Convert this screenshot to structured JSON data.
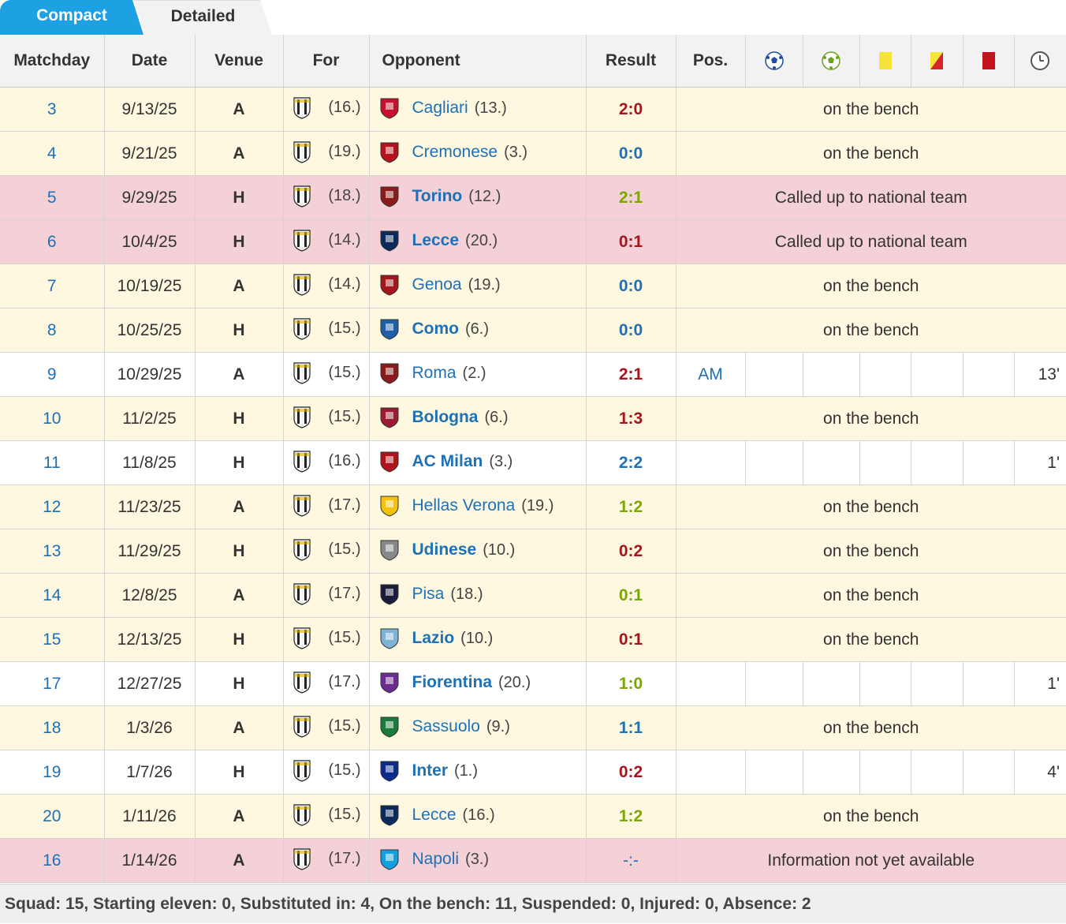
{
  "tabs": {
    "compact": "Compact",
    "detailed": "Detailed"
  },
  "headers": {
    "matchday": "Matchday",
    "date": "Date",
    "venue": "Venue",
    "for": "For",
    "opponent": "Opponent",
    "result": "Result",
    "pos": "Pos."
  },
  "header_icons": [
    "goals-icon",
    "assists-icon",
    "yellow-card-icon",
    "yellow-red-card-icon",
    "red-card-icon",
    "minutes-clock-icon"
  ],
  "colors": {
    "accent": "#1da1e2",
    "link": "#1f70b5",
    "win": "#a5151d",
    "loss": "#7aa800",
    "bench_row": "#fdf8df",
    "national_row": "#f3d1d6"
  },
  "rows": [
    {
      "md": "3",
      "date": "9/13/25",
      "venue": "A",
      "for_rank": "(16.)",
      "opp": "Cagliari",
      "opp_rank": "(13.)",
      "result": "2:0",
      "rclass": "win",
      "status": "bench",
      "note": "on the bench"
    },
    {
      "md": "4",
      "date": "9/21/25",
      "venue": "A",
      "for_rank": "(19.)",
      "opp": "Cremonese",
      "opp_rank": "(3.)",
      "result": "0:0",
      "rclass": "draw",
      "status": "bench",
      "note": "on the bench"
    },
    {
      "md": "5",
      "date": "9/29/25",
      "venue": "H",
      "for_rank": "(18.)",
      "opp": "Torino",
      "opp_rank": "(12.)",
      "result": "2:1",
      "rclass": "loss",
      "status": "nat",
      "note": "Called up to national team"
    },
    {
      "md": "6",
      "date": "10/4/25",
      "venue": "H",
      "for_rank": "(14.)",
      "opp": "Lecce",
      "opp_rank": "(20.)",
      "result": "0:1",
      "rclass": "win",
      "status": "nat",
      "note": "Called up to national team"
    },
    {
      "md": "7",
      "date": "10/19/25",
      "venue": "A",
      "for_rank": "(14.)",
      "opp": "Genoa",
      "opp_rank": "(19.)",
      "result": "0:0",
      "rclass": "draw",
      "status": "bench",
      "note": "on the bench"
    },
    {
      "md": "8",
      "date": "10/25/25",
      "venue": "H",
      "for_rank": "(15.)",
      "opp": "Como",
      "opp_rank": "(6.)",
      "result": "0:0",
      "rclass": "draw",
      "status": "bench",
      "note": "on the bench"
    },
    {
      "md": "9",
      "date": "10/29/25",
      "venue": "A",
      "for_rank": "(15.)",
      "opp": "Roma",
      "opp_rank": "(2.)",
      "result": "2:1",
      "rclass": "win",
      "status": "play",
      "pos": "AM",
      "mins": "13'"
    },
    {
      "md": "10",
      "date": "11/2/25",
      "venue": "H",
      "for_rank": "(15.)",
      "opp": "Bologna",
      "opp_rank": "(6.)",
      "result": "1:3",
      "rclass": "win",
      "status": "bench",
      "note": "on the bench"
    },
    {
      "md": "11",
      "date": "11/8/25",
      "venue": "H",
      "for_rank": "(16.)",
      "opp": "AC Milan",
      "opp_rank": "(3.)",
      "result": "2:2",
      "rclass": "draw",
      "status": "play",
      "pos": "",
      "mins": "1'"
    },
    {
      "md": "12",
      "date": "11/23/25",
      "venue": "A",
      "for_rank": "(17.)",
      "opp": "Hellas Verona",
      "opp_rank": "(19.)",
      "result": "1:2",
      "rclass": "loss",
      "status": "bench",
      "note": "on the bench"
    },
    {
      "md": "13",
      "date": "11/29/25",
      "venue": "H",
      "for_rank": "(15.)",
      "opp": "Udinese",
      "opp_rank": "(10.)",
      "result": "0:2",
      "rclass": "win",
      "status": "bench",
      "note": "on the bench"
    },
    {
      "md": "14",
      "date": "12/8/25",
      "venue": "A",
      "for_rank": "(17.)",
      "opp": "Pisa",
      "opp_rank": "(18.)",
      "result": "0:1",
      "rclass": "loss",
      "status": "bench",
      "note": "on the bench"
    },
    {
      "md": "15",
      "date": "12/13/25",
      "venue": "H",
      "for_rank": "(15.)",
      "opp": "Lazio",
      "opp_rank": "(10.)",
      "result": "0:1",
      "rclass": "win",
      "status": "bench",
      "note": "on the bench"
    },
    {
      "md": "17",
      "date": "12/27/25",
      "venue": "H",
      "for_rank": "(17.)",
      "opp": "Fiorentina",
      "opp_rank": "(20.)",
      "result": "1:0",
      "rclass": "loss",
      "status": "play",
      "pos": "",
      "mins": "1'"
    },
    {
      "md": "18",
      "date": "1/3/26",
      "venue": "A",
      "for_rank": "(15.)",
      "opp": "Sassuolo",
      "opp_rank": "(9.)",
      "result": "1:1",
      "rclass": "draw",
      "status": "bench",
      "note": "on the bench"
    },
    {
      "md": "19",
      "date": "1/7/26",
      "venue": "H",
      "for_rank": "(15.)",
      "opp": "Inter",
      "opp_rank": "(1.)",
      "result": "0:2",
      "rclass": "win",
      "status": "play",
      "pos": "",
      "mins": "4'"
    },
    {
      "md": "20",
      "date": "1/11/26",
      "venue": "A",
      "for_rank": "(15.)",
      "opp": "Lecce",
      "opp_rank": "(16.)",
      "result": "1:2",
      "rclass": "loss",
      "status": "bench",
      "note": "on the bench"
    },
    {
      "md": "16",
      "date": "1/14/26",
      "venue": "A",
      "for_rank": "(17.)",
      "opp": "Napoli",
      "opp_rank": "(3.)",
      "result": "-:-",
      "rclass": "pend",
      "status": "nat",
      "note": "Information not yet available"
    }
  ],
  "opp_crest_colors": [
    "#c8102e",
    "#b5121b",
    "#8b1a1a",
    "#0b2a5c",
    "#a3151a",
    "#1f5fa8",
    "#8b1a1a",
    "#9b1b30",
    "#b0131b",
    "#f4c20d",
    "#888888",
    "#1b1b3a",
    "#7fb3d5",
    "#6a2c91",
    "#1a7a3a",
    "#0a2b8c",
    "#0b2a5c",
    "#14a0e0"
  ],
  "footer": "Squad: 15, Starting eleven: 0, Substituted in: 4, On the bench: 11, Suspended: 0, Injured: 0, Absence: 2"
}
